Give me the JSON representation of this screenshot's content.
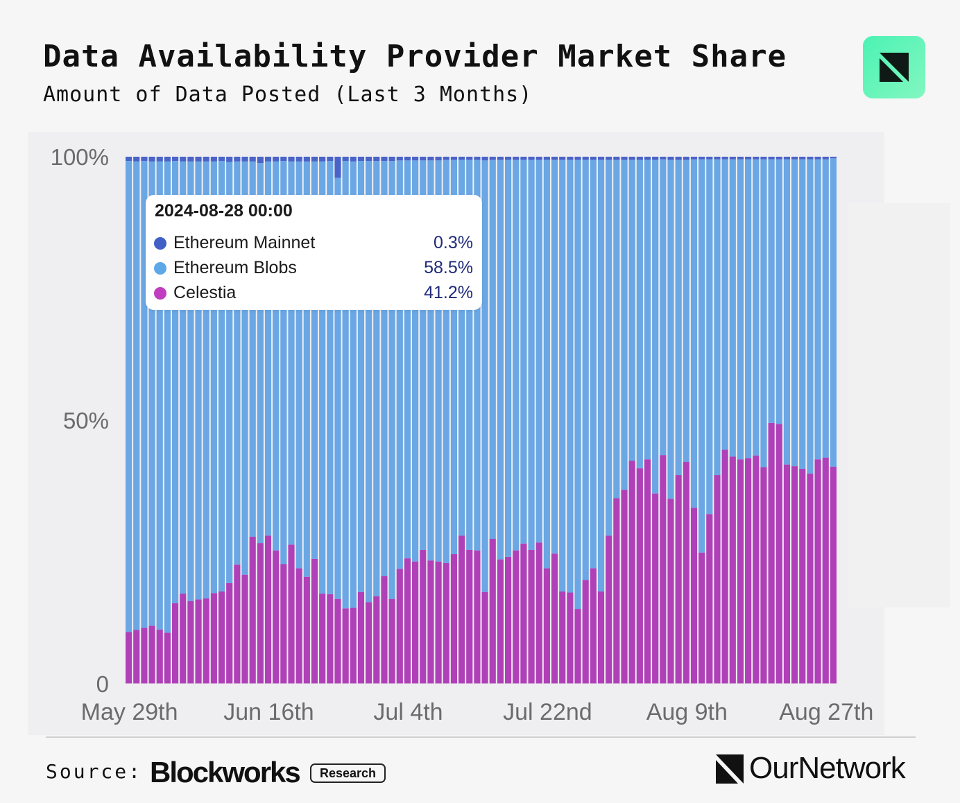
{
  "header": {
    "title": "Data Availability Provider Market Share",
    "subtitle": "Amount of Data Posted (Last 3 Months)",
    "logo_icon": "ournetwork-arrow-icon",
    "logo_color": "#5ef5b8"
  },
  "tooltip": {
    "date": "2024-08-28 00:00",
    "rows": [
      {
        "label": "Ethereum Mainnet",
        "value": "0.3%",
        "color": "#4060c8"
      },
      {
        "label": "Ethereum Blobs",
        "value": "58.5%",
        "color": "#5fa8e8"
      },
      {
        "label": "Celestia",
        "value": "41.2%",
        "color": "#c03cc0"
      }
    ]
  },
  "footer": {
    "source_label": "Source:",
    "source_brand": "Blockworks",
    "source_tag": "Research",
    "brand_name": "OurNetwork"
  },
  "chart_data": {
    "type": "bar",
    "stacked": true,
    "normalized": true,
    "y_tick_labels": [
      "0",
      "50%",
      "100%"
    ],
    "ylim": [
      0,
      100
    ],
    "x_tick_labels": [
      "May 29th",
      "Jun 16th",
      "Jul 4th",
      "Jul 22nd",
      "Aug 9th",
      "Aug 27th"
    ],
    "x_tick_indices": [
      0,
      18,
      36,
      54,
      72,
      90
    ],
    "start_date": "2024-05-29",
    "grid": false,
    "series": [
      {
        "name": "Celestia",
        "color": "#b040b8",
        "values": [
          9.8,
          10.2,
          10.6,
          11,
          10.3,
          9.7,
          15.3,
          17.1,
          15.7,
          16,
          16.2,
          17.2,
          17.5,
          19.1,
          22.6,
          20.7,
          27.9,
          26.7,
          28.1,
          25.3,
          22.7,
          26.4,
          21.9,
          20.3,
          23.7,
          17.1,
          17,
          16.1,
          14.3,
          14.4,
          17.4,
          15.5,
          16.6,
          20.4,
          16.1,
          21.8,
          23.8,
          23.2,
          25.4,
          23.4,
          23.2,
          22.9,
          24.6,
          28.1,
          25.4,
          25.3,
          17.4,
          27.5,
          23.6,
          24.1,
          25.3,
          26.6,
          25.4,
          26.8,
          21.9,
          24.7,
          17.5,
          17.3,
          14.2,
          19.7,
          21.9,
          17.5,
          28.1,
          35.2,
          36.8,
          42.3,
          40.9,
          42.6,
          36.1,
          43.4,
          35.1,
          39.6,
          42.1,
          33.4,
          24.9,
          32.2,
          39.6,
          44.4,
          43.1,
          42.6,
          42.8,
          43.3,
          41.1,
          49.5,
          49.3,
          41.6,
          41.3,
          40.8,
          39.9,
          42.6,
          42.9,
          41.2
        ]
      },
      {
        "name": "Ethereum Blobs",
        "color": "#6aa7e4",
        "values": [
          89.4,
          88.9,
          88.6,
          88.1,
          88.8,
          89.4,
          83.9,
          82,
          83.4,
          83.1,
          82.9,
          81.9,
          81.7,
          79.9,
          76.5,
          78.4,
          71.2,
          72.1,
          71,
          73.8,
          76.5,
          72.7,
          77.2,
          78.8,
          75.4,
          82,
          82.2,
          79.9,
          84.9,
          84.7,
          81.8,
          83.7,
          82.6,
          78.8,
          83.1,
          77.5,
          75.5,
          76.1,
          73.9,
          75.9,
          76.1,
          76.5,
          74.8,
          71.3,
          74,
          74.1,
          81.9,
          71.9,
          75.8,
          75.3,
          74.1,
          72.8,
          74,
          72.6,
          77.5,
          74.7,
          81.9,
          82.1,
          85.2,
          79.7,
          77.5,
          81.9,
          71.3,
          64.2,
          62.6,
          57.1,
          58.5,
          56.8,
          63.3,
          56.1,
          64.3,
          59.8,
          57.3,
          66.1,
          74.6,
          67.3,
          59.9,
          55.1,
          56.4,
          56.9,
          56.7,
          56.2,
          58.4,
          50,
          50.2,
          57.9,
          58.2,
          58.7,
          59.6,
          56.9,
          56.6,
          58.5
        ]
      },
      {
        "name": "Ethereum Mainnet",
        "color": "#4a63c9",
        "values": [
          0.8,
          0.9,
          0.8,
          0.9,
          0.9,
          0.9,
          0.8,
          0.9,
          0.9,
          0.9,
          0.9,
          0.9,
          0.8,
          1,
          0.9,
          0.9,
          0.9,
          1.2,
          0.9,
          0.9,
          0.8,
          0.9,
          0.9,
          0.9,
          0.9,
          0.9,
          0.8,
          4,
          0.8,
          0.9,
          0.8,
          0.8,
          0.8,
          0.8,
          0.8,
          0.7,
          0.7,
          0.7,
          0.7,
          0.7,
          0.7,
          0.6,
          0.6,
          0.6,
          0.6,
          0.6,
          0.7,
          0.6,
          0.6,
          0.6,
          0.6,
          0.6,
          0.6,
          0.6,
          0.6,
          0.6,
          0.6,
          0.6,
          0.6,
          0.6,
          0.6,
          0.6,
          0.6,
          0.6,
          0.6,
          0.6,
          0.6,
          0.6,
          0.6,
          0.5,
          0.6,
          0.6,
          0.6,
          0.5,
          0.5,
          0.5,
          0.5,
          0.5,
          0.5,
          0.5,
          0.5,
          0.5,
          0.5,
          0.5,
          0.5,
          0.5,
          0.5,
          0.5,
          0.5,
          0.5,
          0.5,
          0.3
        ]
      }
    ]
  }
}
